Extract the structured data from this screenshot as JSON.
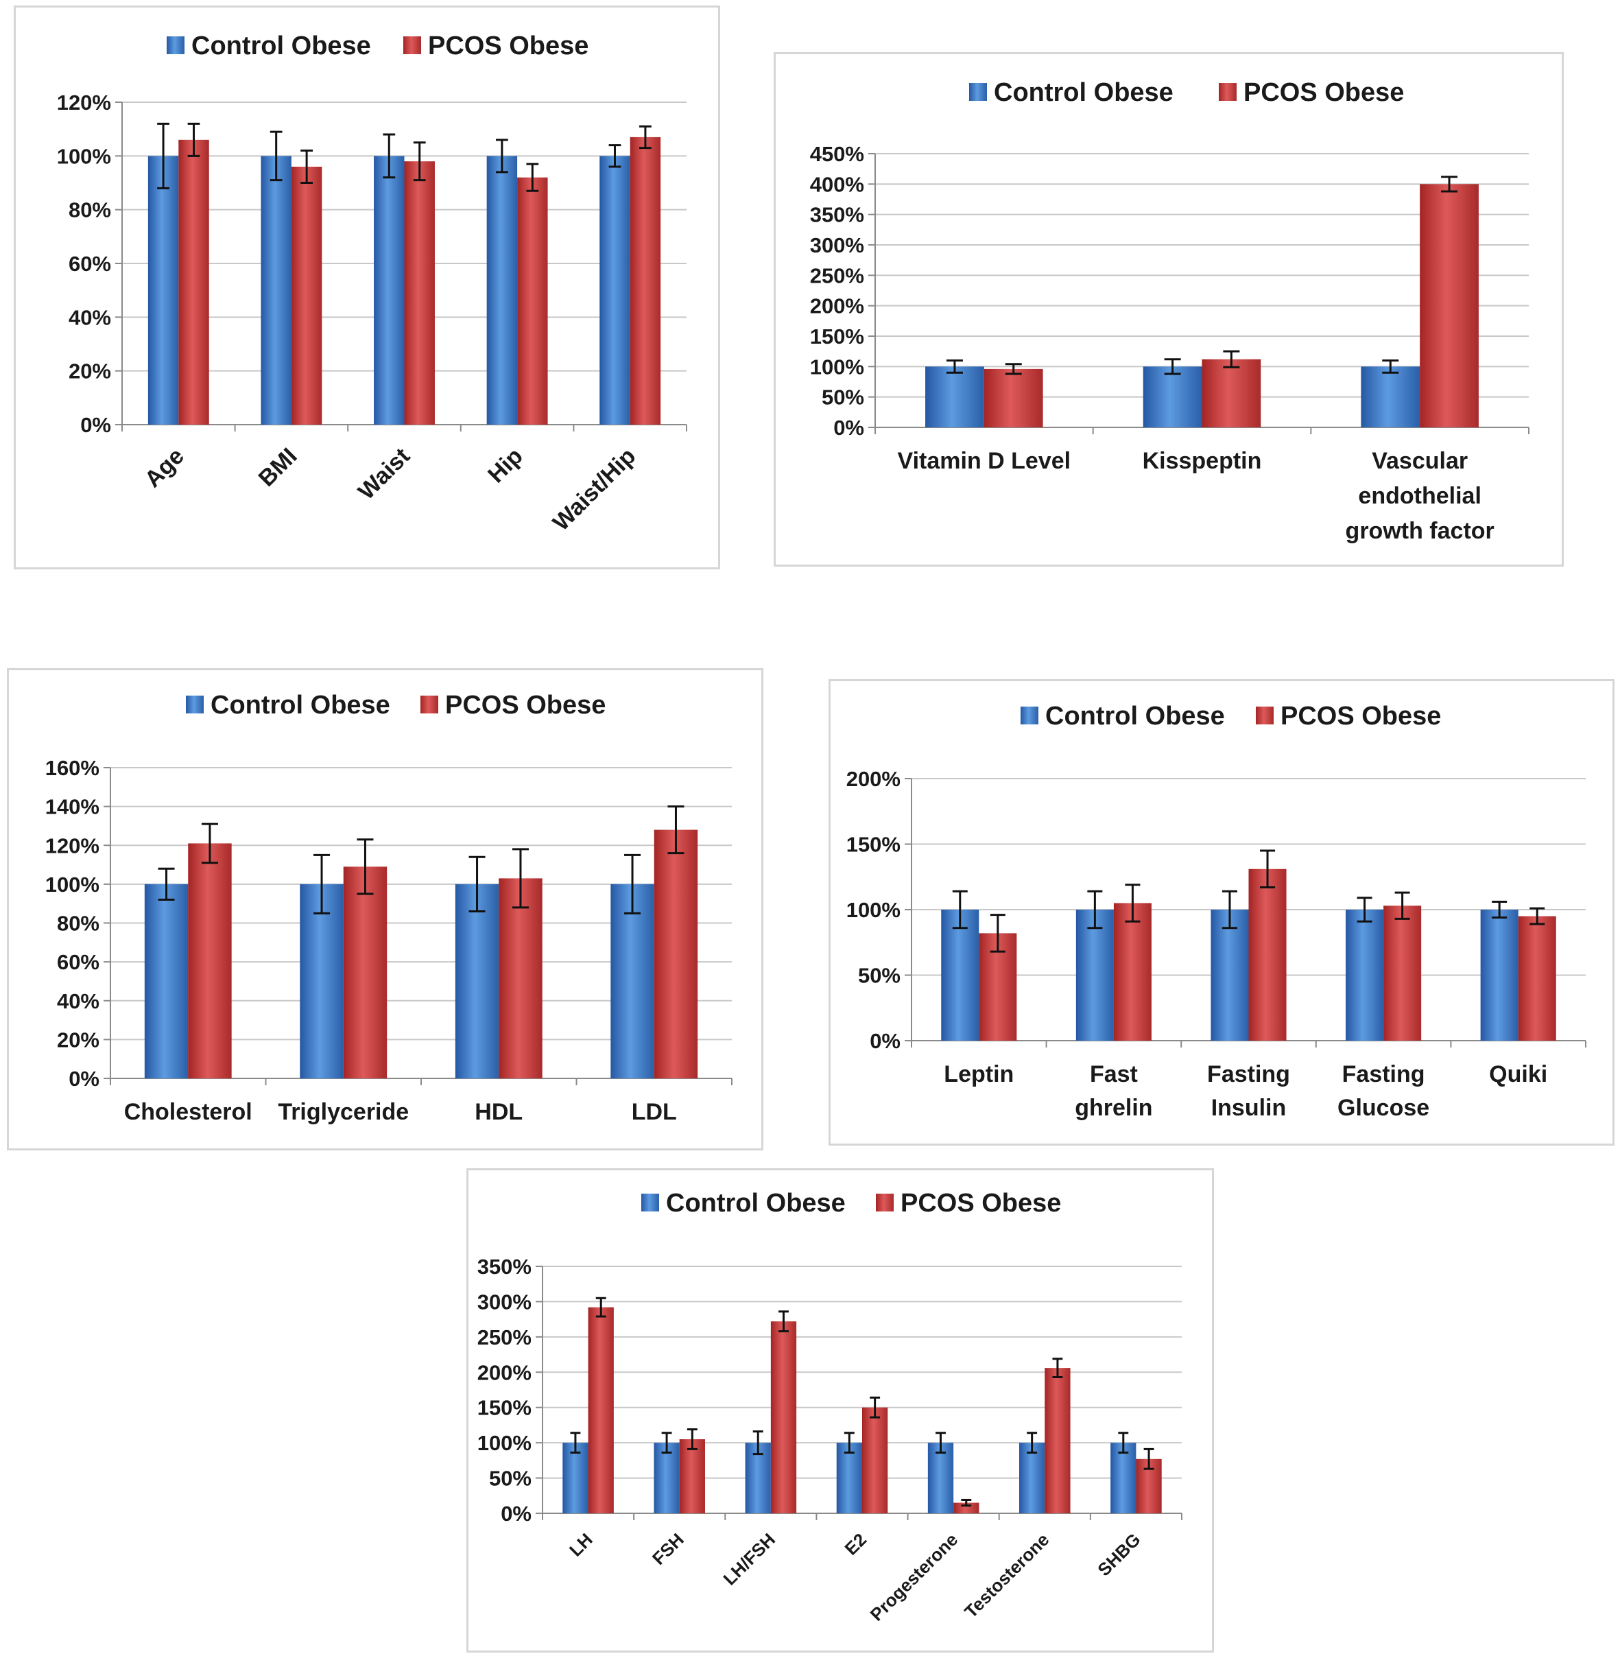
{
  "colors": {
    "control": "#3a75c4",
    "pcos": "#c43a3a",
    "grid": "#c8c8c8",
    "axis": "#8a8a8a",
    "text": "#1a1a1a"
  },
  "chart_data": [
    {
      "id": "anthropometric",
      "type": "bar",
      "categories": [
        "Age",
        "BMI",
        "Waist",
        "Hip",
        "Waist/Hip"
      ],
      "series": [
        {
          "name": "Control Obese",
          "values": [
            100,
            100,
            100,
            100,
            100
          ],
          "errors": [
            12,
            9,
            8,
            6,
            4
          ]
        },
        {
          "name": "PCOS Obese",
          "values": [
            106,
            96,
            98,
            92,
            107
          ],
          "errors": [
            6,
            6,
            7,
            5,
            4
          ]
        }
      ],
      "yticks": [
        "0%",
        "20%",
        "40%",
        "60%",
        "80%",
        "100%",
        "120%"
      ],
      "ylim": [
        0,
        120
      ],
      "legend_position": "top",
      "grid": true
    },
    {
      "id": "vitd_kiss_vegf",
      "type": "bar",
      "categories": [
        "Vitamin D Level",
        "Kisspeptin",
        "Vascular endothelial growth factor"
      ],
      "series": [
        {
          "name": "Control Obese",
          "values": [
            100,
            100,
            100
          ],
          "errors": [
            10,
            12,
            10
          ]
        },
        {
          "name": "PCOS Obese",
          "values": [
            96,
            112,
            400
          ],
          "errors": [
            8,
            13,
            12
          ]
        }
      ],
      "yticks": [
        "0%",
        "50%",
        "100%",
        "150%",
        "200%",
        "250%",
        "300%",
        "350%",
        "400%",
        "450%"
      ],
      "ylim": [
        0,
        450
      ],
      "legend_position": "top",
      "grid": true
    },
    {
      "id": "lipids",
      "type": "bar",
      "categories": [
        "Cholesterol",
        "Triglyceride",
        "HDL",
        "LDL"
      ],
      "series": [
        {
          "name": "Control Obese",
          "values": [
            100,
            100,
            100,
            100
          ],
          "errors": [
            8,
            15,
            14,
            15
          ]
        },
        {
          "name": "PCOS Obese",
          "values": [
            121,
            109,
            103,
            128
          ],
          "errors": [
            10,
            14,
            15,
            12
          ]
        }
      ],
      "yticks": [
        "0%",
        "20%",
        "40%",
        "60%",
        "80%",
        "100%",
        "120%",
        "140%",
        "160%"
      ],
      "ylim": [
        0,
        160
      ],
      "legend_position": "top",
      "grid": true
    },
    {
      "id": "metabolic",
      "type": "bar",
      "categories": [
        "Leptin",
        "Fast ghrelin",
        "Fasting Insulin",
        "Fasting Glucose",
        "Quiki"
      ],
      "series": [
        {
          "name": "Control Obese",
          "values": [
            100,
            100,
            100,
            100,
            100
          ],
          "errors": [
            14,
            14,
            14,
            9,
            6
          ]
        },
        {
          "name": "PCOS Obese",
          "values": [
            82,
            105,
            131,
            103,
            95
          ],
          "errors": [
            14,
            14,
            14,
            10,
            6
          ]
        }
      ],
      "yticks": [
        "0%",
        "50%",
        "100%",
        "150%",
        "200%"
      ],
      "ylim": [
        0,
        200
      ],
      "legend_position": "top",
      "grid": true
    },
    {
      "id": "hormones",
      "type": "bar",
      "categories": [
        "LH",
        "FSH",
        "LH/FSH",
        "E2",
        "Progesterone",
        "Testosterone",
        "SHBG"
      ],
      "series": [
        {
          "name": "Control Obese",
          "values": [
            100,
            100,
            100,
            100,
            100,
            100,
            100
          ],
          "errors": [
            14,
            14,
            16,
            14,
            14,
            14,
            14
          ]
        },
        {
          "name": "PCOS Obese",
          "values": [
            292,
            105,
            272,
            150,
            15,
            206,
            77
          ],
          "errors": [
            13,
            14,
            14,
            14,
            4,
            13,
            14
          ]
        }
      ],
      "yticks": [
        "0%",
        "50%",
        "100%",
        "150%",
        "200%",
        "250%",
        "300%",
        "350%"
      ],
      "ylim": [
        0,
        350
      ],
      "legend_position": "top",
      "grid": true
    }
  ]
}
